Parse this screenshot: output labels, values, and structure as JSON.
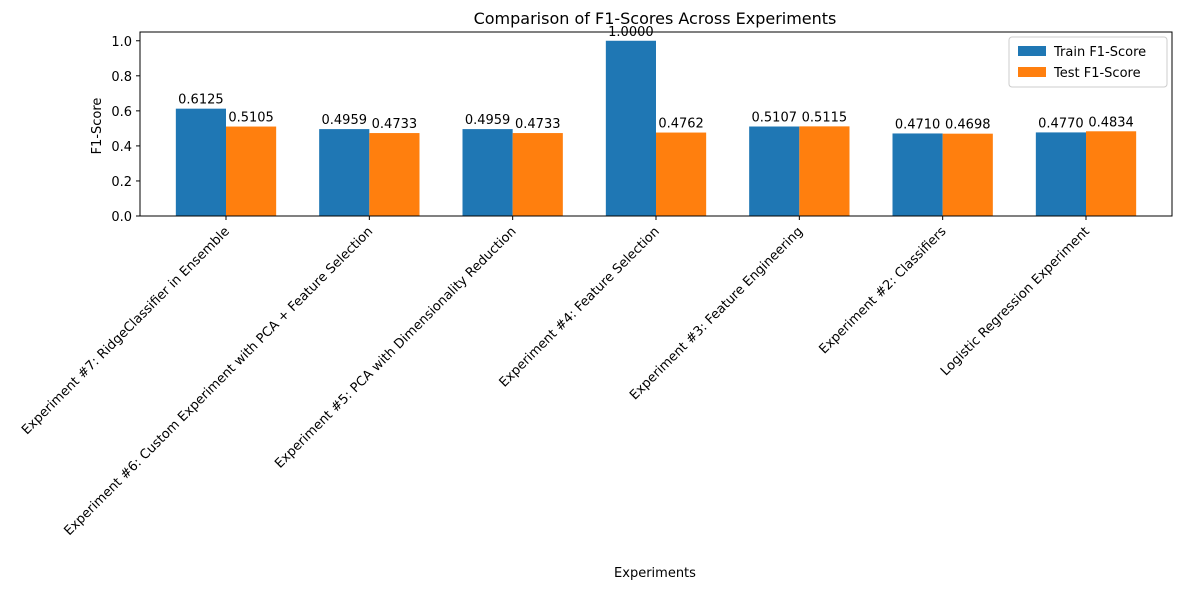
{
  "chart_data": {
    "type": "bar",
    "title": "Comparison of F1-Scores Across Experiments",
    "xlabel": "Experiments",
    "ylabel": "F1-Score",
    "ylim": [
      0,
      1.05
    ],
    "yticks": [
      "0.0",
      "0.2",
      "0.4",
      "0.6",
      "0.8",
      "1.0"
    ],
    "grid": false,
    "legend_position": "top-right",
    "categories": [
      "Experiment #7: RidgeClassifier in Ensemble",
      "Experiment #6: Custom Experiment with PCA + Feature Selection",
      "Experiment #5: PCA with Dimensionality Reduction",
      "Experiment #4: Feature Selection",
      "Experiment #3: Feature Engineering",
      "Experiment #2: Classifiers",
      "Logistic Regression Experiment"
    ],
    "series": [
      {
        "name": "Train F1-Score",
        "color": "#1f77b4",
        "values": [
          0.6125,
          0.4959,
          0.4959,
          1.0,
          0.5107,
          0.471,
          0.477
        ],
        "labels": [
          "0.6125",
          "0.4959",
          "0.4959",
          "1.0000",
          "0.5107",
          "0.4710",
          "0.4770"
        ]
      },
      {
        "name": "Test F1-Score",
        "color": "#ff7f0e",
        "values": [
          0.5105,
          0.4733,
          0.4733,
          0.4762,
          0.5115,
          0.4698,
          0.4834
        ],
        "labels": [
          "0.5105",
          "0.4733",
          "0.4733",
          "0.4762",
          "0.5115",
          "0.4698",
          "0.4834"
        ]
      }
    ]
  }
}
